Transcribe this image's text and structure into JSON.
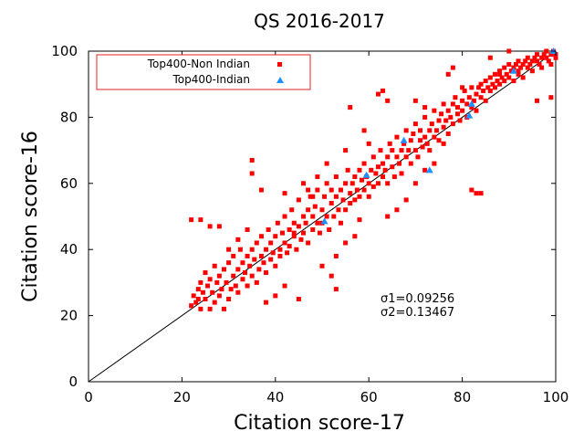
{
  "chart_data": {
    "type": "scatter",
    "title": "QS 2016-2017",
    "xlabel": "Citation score-17",
    "ylabel": "Citation score-16",
    "xlim": [
      0,
      100
    ],
    "ylim": [
      0,
      100
    ],
    "x_ticks": [
      0,
      20,
      40,
      60,
      80,
      100
    ],
    "y_ticks": [
      0,
      20,
      40,
      60,
      80,
      100
    ],
    "grid": false,
    "legend_position": "top-left",
    "reference_line": {
      "from": [
        0,
        0
      ],
      "to": [
        100,
        100
      ],
      "color": "#000000"
    },
    "annotations": [
      "σ1=0.09256",
      "σ2=0.13467"
    ],
    "series": [
      {
        "name": "Top400-Non Indian",
        "marker": "square",
        "color": "#ff0000",
        "points": [
          [
            22,
            23
          ],
          [
            22.5,
            26
          ],
          [
            23,
            24
          ],
          [
            23.5,
            25
          ],
          [
            23.5,
            28
          ],
          [
            24,
            22
          ],
          [
            24,
            30
          ],
          [
            24.5,
            27
          ],
          [
            25,
            33
          ],
          [
            25,
            25
          ],
          [
            25.5,
            29
          ],
          [
            26,
            31
          ],
          [
            26,
            22
          ],
          [
            26.5,
            27
          ],
          [
            27,
            35
          ],
          [
            27,
            24
          ],
          [
            27.5,
            30
          ],
          [
            28,
            26
          ],
          [
            28,
            32
          ],
          [
            28.5,
            28
          ],
          [
            29,
            22
          ],
          [
            29,
            34
          ],
          [
            29.5,
            30
          ],
          [
            30,
            25
          ],
          [
            30,
            36
          ],
          [
            30.5,
            28
          ],
          [
            31,
            32
          ],
          [
            31,
            38
          ],
          [
            31.5,
            29
          ],
          [
            32,
            34
          ],
          [
            32,
            27
          ],
          [
            32.5,
            40
          ],
          [
            33,
            31
          ],
          [
            33,
            36
          ],
          [
            33.5,
            33
          ],
          [
            34,
            38
          ],
          [
            34,
            29
          ],
          [
            34.5,
            35
          ],
          [
            35,
            40
          ],
          [
            35,
            32
          ],
          [
            35.5,
            37
          ],
          [
            36,
            30
          ],
          [
            36,
            42
          ],
          [
            36.5,
            34
          ],
          [
            37,
            38
          ],
          [
            37,
            44
          ],
          [
            37.5,
            36
          ],
          [
            38,
            33
          ],
          [
            38,
            40
          ],
          [
            38.5,
            46
          ],
          [
            39,
            37
          ],
          [
            39,
            42
          ],
          [
            39.5,
            39
          ],
          [
            40,
            35
          ],
          [
            40,
            44
          ],
          [
            40.5,
            48
          ],
          [
            41,
            40
          ],
          [
            41,
            38
          ],
          [
            41.5,
            45
          ],
          [
            42,
            42
          ],
          [
            42,
            50
          ],
          [
            42.5,
            39
          ],
          [
            43,
            46
          ],
          [
            43,
            41
          ],
          [
            43.5,
            52
          ],
          [
            44,
            44
          ],
          [
            44,
            48
          ],
          [
            44.5,
            40
          ],
          [
            45,
            47
          ],
          [
            45,
            55
          ],
          [
            45.5,
            43
          ],
          [
            46,
            50
          ],
          [
            46,
            45
          ],
          [
            46.5,
            48
          ],
          [
            47,
            52
          ],
          [
            47,
            42
          ],
          [
            47.5,
            56
          ],
          [
            48,
            46
          ],
          [
            48,
            50
          ],
          [
            48.5,
            53
          ],
          [
            49,
            48
          ],
          [
            49,
            58
          ],
          [
            49.5,
            45
          ],
          [
            50,
            52
          ],
          [
            50,
            48
          ],
          [
            50.5,
            56
          ],
          [
            51,
            50
          ],
          [
            51,
            60
          ],
          [
            51.5,
            46
          ],
          [
            52,
            54
          ],
          [
            52,
            58
          ],
          [
            52.5,
            50
          ],
          [
            53,
            56
          ],
          [
            53,
            62
          ],
          [
            53.5,
            52
          ],
          [
            54,
            48
          ],
          [
            54,
            58
          ],
          [
            54.5,
            55
          ],
          [
            55,
            60
          ],
          [
            55,
            52
          ],
          [
            55.5,
            64
          ],
          [
            56,
            57
          ],
          [
            56,
            54
          ],
          [
            56.5,
            60
          ],
          [
            57,
            62
          ],
          [
            57,
            55
          ],
          [
            57.5,
            58
          ],
          [
            58,
            64
          ],
          [
            58,
            56
          ],
          [
            58.5,
            61
          ],
          [
            59,
            66
          ],
          [
            59,
            58
          ],
          [
            59.5,
            62
          ],
          [
            60,
            60
          ],
          [
            60,
            56
          ],
          [
            60.5,
            64
          ],
          [
            61,
            68
          ],
          [
            61,
            59
          ],
          [
            61.5,
            63
          ],
          [
            62,
            65
          ],
          [
            62,
            60
          ],
          [
            62.5,
            70
          ],
          [
            63,
            62
          ],
          [
            63,
            66
          ],
          [
            63.5,
            64
          ],
          [
            64,
            68
          ],
          [
            64,
            60
          ],
          [
            64.5,
            72
          ],
          [
            65,
            65
          ],
          [
            65,
            70
          ],
          [
            65.5,
            62
          ],
          [
            66,
            68
          ],
          [
            66,
            74
          ],
          [
            66.5,
            66
          ],
          [
            67,
            70
          ],
          [
            67,
            63
          ],
          [
            67.5,
            72
          ],
          [
            68,
            68
          ],
          [
            68,
            76
          ],
          [
            68.5,
            70
          ],
          [
            69,
            66
          ],
          [
            69,
            73
          ],
          [
            69.5,
            75
          ],
          [
            70,
            70
          ],
          [
            70,
            78
          ],
          [
            70.5,
            68
          ],
          [
            71,
            73
          ],
          [
            71,
            76
          ],
          [
            71.5,
            71
          ],
          [
            72,
            74
          ],
          [
            72,
            80
          ],
          [
            72.5,
            72
          ],
          [
            73,
            76
          ],
          [
            73,
            70
          ],
          [
            73.5,
            78
          ],
          [
            74,
            74
          ],
          [
            74,
            82
          ],
          [
            74.5,
            76
          ],
          [
            75,
            79
          ],
          [
            75,
            73
          ],
          [
            75.5,
            81
          ],
          [
            76,
            77
          ],
          [
            76,
            84
          ],
          [
            76.5,
            79
          ],
          [
            77,
            82
          ],
          [
            77,
            75
          ],
          [
            77.5,
            80
          ],
          [
            78,
            84
          ],
          [
            78,
            78
          ],
          [
            78.5,
            86
          ],
          [
            79,
            81
          ],
          [
            79,
            83
          ],
          [
            79.5,
            79
          ],
          [
            80,
            85
          ],
          [
            80,
            82
          ],
          [
            80.5,
            88
          ],
          [
            81,
            84
          ],
          [
            81,
            80
          ],
          [
            81.5,
            86
          ],
          [
            82,
            83
          ],
          [
            82,
            89
          ],
          [
            82.5,
            85
          ],
          [
            83,
            87
          ],
          [
            83,
            82
          ],
          [
            83.5,
            89
          ],
          [
            84,
            86
          ],
          [
            84,
            90
          ],
          [
            84.5,
            88
          ],
          [
            85,
            91
          ],
          [
            85,
            85
          ],
          [
            85.5,
            89
          ],
          [
            86,
            92
          ],
          [
            86,
            88
          ],
          [
            86.5,
            90
          ],
          [
            87,
            93
          ],
          [
            87,
            89
          ],
          [
            87.5,
            91
          ],
          [
            88,
            94
          ],
          [
            88,
            90
          ],
          [
            88.5,
            92
          ],
          [
            89,
            95
          ],
          [
            89,
            91
          ],
          [
            89.5,
            93
          ],
          [
            90,
            96
          ],
          [
            90,
            92
          ],
          [
            90.5,
            94
          ],
          [
            91,
            95
          ],
          [
            91,
            91
          ],
          [
            91.5,
            96
          ],
          [
            92,
            93
          ],
          [
            92,
            97
          ],
          [
            92.5,
            95
          ],
          [
            93,
            96
          ],
          [
            93,
            92
          ],
          [
            93.5,
            97
          ],
          [
            94,
            95
          ],
          [
            94,
            98
          ],
          [
            94.5,
            96
          ],
          [
            95,
            97
          ],
          [
            95,
            94
          ],
          [
            95.5,
            98
          ],
          [
            96,
            97
          ],
          [
            96,
            99
          ],
          [
            96.5,
            96
          ],
          [
            97,
            98
          ],
          [
            97,
            95
          ],
          [
            97.5,
            99
          ],
          [
            98,
            98
          ],
          [
            98,
            100
          ],
          [
            98.5,
            97
          ],
          [
            99,
            99
          ],
          [
            99,
            96
          ],
          [
            99.5,
            100
          ],
          [
            100,
            99
          ],
          [
            100,
            98
          ],
          [
            22,
            49
          ],
          [
            24,
            49
          ],
          [
            26,
            47
          ],
          [
            28,
            47
          ],
          [
            35,
            67
          ],
          [
            35,
            63
          ],
          [
            37,
            58
          ],
          [
            42,
            57
          ],
          [
            44,
            45
          ],
          [
            45,
            25
          ],
          [
            46,
            60
          ],
          [
            48,
            56
          ],
          [
            53,
            28
          ],
          [
            55,
            70
          ],
          [
            56,
            83
          ],
          [
            59,
            76
          ],
          [
            60,
            72
          ],
          [
            62,
            87
          ],
          [
            63,
            88
          ],
          [
            64,
            85
          ],
          [
            70,
            85
          ],
          [
            72,
            83
          ],
          [
            77,
            93
          ],
          [
            78,
            95
          ],
          [
            80,
            89
          ],
          [
            82,
            58
          ],
          [
            83,
            57
          ],
          [
            84,
            57
          ],
          [
            86,
            98
          ],
          [
            88,
            93
          ],
          [
            90,
            100
          ],
          [
            92,
            94
          ],
          [
            96,
            85
          ],
          [
            99,
            86
          ],
          [
            38,
            24
          ],
          [
            40,
            26
          ],
          [
            42,
            29
          ],
          [
            30,
            40
          ],
          [
            32,
            43
          ],
          [
            34,
            46
          ],
          [
            50,
            35
          ],
          [
            53,
            38
          ],
          [
            55,
            42
          ],
          [
            57,
            44
          ],
          [
            58,
            49
          ],
          [
            64,
            50
          ],
          [
            66,
            52
          ],
          [
            68,
            55
          ],
          [
            70,
            60
          ],
          [
            72,
            64
          ],
          [
            74,
            66
          ],
          [
            76,
            72
          ],
          [
            47,
            58
          ],
          [
            49,
            62
          ],
          [
            51,
            66
          ],
          [
            52,
            32
          ]
        ]
      },
      {
        "name": "Top400-Indian",
        "marker": "triangle",
        "color": "#1e90ff",
        "points": [
          [
            50.5,
            48.5
          ],
          [
            59.5,
            62.5
          ],
          [
            67.5,
            73
          ],
          [
            73,
            64
          ],
          [
            81.5,
            80.5
          ],
          [
            82,
            84
          ],
          [
            91,
            94
          ],
          [
            99.5,
            100
          ]
        ]
      }
    ]
  }
}
